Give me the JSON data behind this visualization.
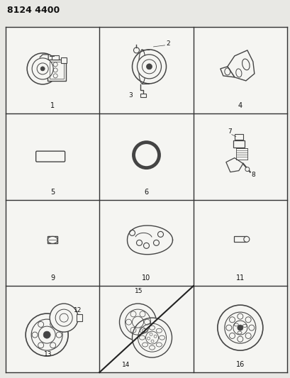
{
  "title": "8124 4400",
  "bg_color": "#e8e8e4",
  "cell_bg": "#f5f5f2",
  "grid_color": "#333333",
  "text_color": "#111111",
  "grid_rows": 4,
  "grid_cols": 3,
  "fig_width": 4.1,
  "fig_height": 5.33,
  "title_fontsize": 9,
  "label_fontsize": 7
}
